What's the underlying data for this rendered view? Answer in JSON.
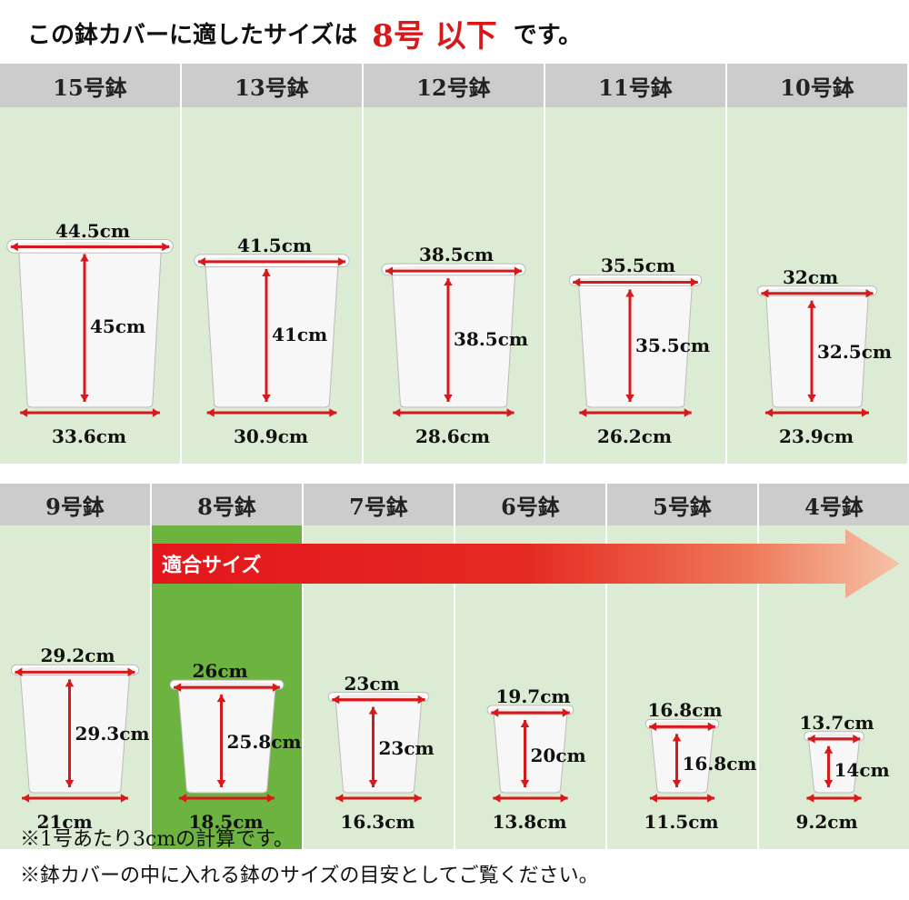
{
  "title": {
    "prefix": "この鉢カバーに適したサイズは",
    "highlight": "8号 以下",
    "suffix": "です。"
  },
  "row1": [
    {
      "name": "15号鉢",
      "top": "44.5cm",
      "height": "45cm",
      "bottom": "33.6cm"
    },
    {
      "name": "13号鉢",
      "top": "41.5cm",
      "height": "41cm",
      "bottom": "30.9cm"
    },
    {
      "name": "12号鉢",
      "top": "38.5cm",
      "height": "38.5cm",
      "bottom": "28.6cm"
    },
    {
      "name": "11号鉢",
      "top": "35.5cm",
      "height": "35.5cm",
      "bottom": "26.2cm"
    },
    {
      "name": "10号鉢",
      "top": "32cm",
      "height": "32.5cm",
      "bottom": "23.9cm"
    }
  ],
  "row2": [
    {
      "name": "9号鉢",
      "top": "29.2cm",
      "height": "29.3cm",
      "bottom": "21cm"
    },
    {
      "name": "8号鉢",
      "top": "26cm",
      "height": "25.8cm",
      "bottom": "18.5cm"
    },
    {
      "name": "7号鉢",
      "top": "23cm",
      "height": "23cm",
      "bottom": "16.3cm"
    },
    {
      "name": "6号鉢",
      "top": "19.7cm",
      "height": "20cm",
      "bottom": "13.8cm"
    },
    {
      "name": "5号鉢",
      "top": "16.8cm",
      "height": "16.8cm",
      "bottom": "11.5cm"
    },
    {
      "name": "4号鉢",
      "top": "13.7cm",
      "height": "14cm",
      "bottom": "9.2cm"
    }
  ],
  "fit_label": "適合サイズ",
  "notes": [
    "※1号あたり3cmの計算です。",
    "※鉢カバーの中に入れる鉢のサイズの目安としてご覧ください。"
  ],
  "colors": {
    "accent": "#d6191b",
    "panel": "#dcebd3",
    "header": "#cccccc",
    "fit": "#6db33f"
  }
}
